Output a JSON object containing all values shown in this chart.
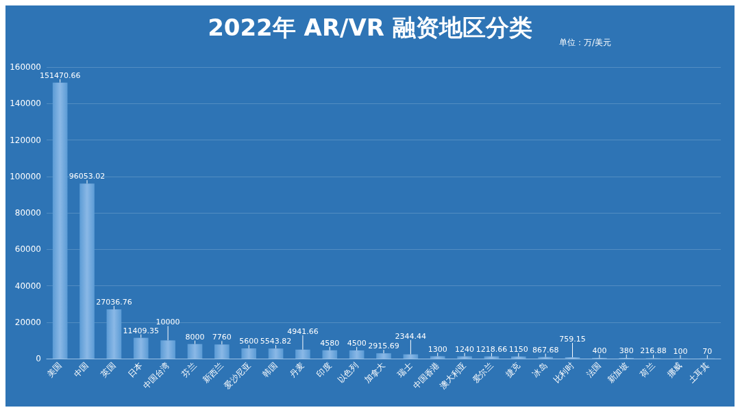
{
  "chart_data": {
    "type": "bar",
    "title": "2022年 AR/VR 融资地区分类",
    "annotations": [
      "单位：万/美元"
    ],
    "categories": [
      "美国",
      "中国",
      "英国",
      "日本",
      "中国台湾",
      "芬兰",
      "新西兰",
      "爱沙尼亚",
      "韩国",
      "丹麦",
      "印度",
      "以色列",
      "加拿大",
      "瑞士",
      "中国香港",
      "澳大利亚",
      "爱尔兰",
      "捷克",
      "冰岛",
      "比利时",
      "法国",
      "新加坡",
      "荷兰",
      "挪威",
      "土耳其"
    ],
    "values": [
      151470.66,
      96053.02,
      27036.76,
      11409.35,
      10000,
      8000,
      7760,
      5600,
      5543.82,
      4941.66,
      4580,
      4500,
      2915.69,
      2344.44,
      1300,
      1240,
      1218.66,
      1150,
      867.68,
      759.15,
      400,
      380,
      216.88,
      100,
      70
    ],
    "color": "#5b9bd5",
    "ylim": [
      0,
      160000
    ],
    "yticks": [
      0,
      20000,
      40000,
      60000,
      80000,
      100000,
      120000,
      140000,
      160000
    ],
    "grid": "y",
    "data_labels": true
  }
}
